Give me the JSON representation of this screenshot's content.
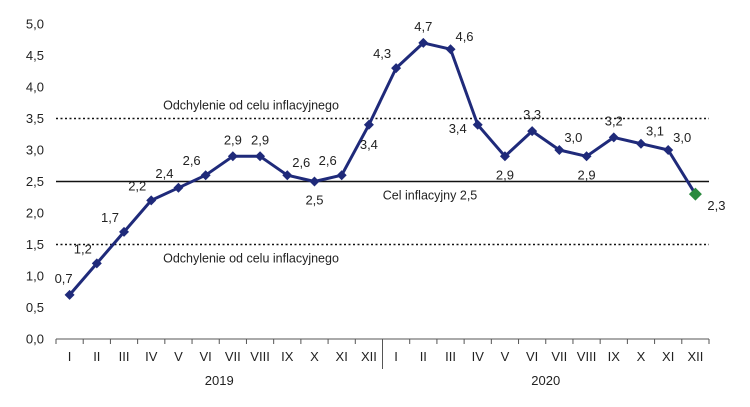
{
  "chart_data": {
    "type": "line",
    "categories": [
      "I",
      "II",
      "III",
      "IV",
      "V",
      "VI",
      "VII",
      "VIII",
      "IX",
      "X",
      "XI",
      "XII",
      "I",
      "II",
      "III",
      "IV",
      "V",
      "VI",
      "VII",
      "VIII",
      "IX",
      "X",
      "XI",
      "XII"
    ],
    "year_labels": [
      "2019",
      "2020"
    ],
    "values": [
      0.7,
      1.2,
      1.7,
      2.2,
      2.4,
      2.6,
      2.9,
      2.9,
      2.6,
      2.5,
      2.6,
      3.4,
      4.3,
      4.7,
      4.6,
      3.4,
      2.9,
      3.3,
      3.0,
      2.9,
      3.2,
      3.1,
      3.0,
      2.3
    ],
    "value_labels": [
      "0,7",
      "1,2",
      "1,7",
      "2,2",
      "2,4",
      "2,6",
      "2,9",
      "2,9",
      "2,6",
      "2,5",
      "2,6",
      "3,4",
      "4,3",
      "4,7",
      "4,6",
      "3,4",
      "2,9",
      "3,3",
      "3,0",
      "2,9",
      "3,2",
      "3,1",
      "3,0",
      "2,3"
    ],
    "y_ticks": [
      "0,0",
      "0,5",
      "1,0",
      "1,5",
      "2,0",
      "2,5",
      "3,0",
      "3,5",
      "4,0",
      "4,5",
      "5,0"
    ],
    "ylim": [
      0,
      5
    ],
    "reference_lines": [
      {
        "value": 3.5,
        "style": "dotted",
        "label": "Odchylenie od celu inflacyjnego"
      },
      {
        "value": 2.5,
        "style": "solid",
        "label": "Cel inflacyjny 2,5"
      },
      {
        "value": 1.5,
        "style": "dotted",
        "label": "Odchylenie od celu inflacyjnego"
      }
    ],
    "colors": {
      "line": "#1f2a7a",
      "marker": "#1f2a7a",
      "highlight_marker": "#2a8a3e",
      "reference": "#111111"
    },
    "highlight_last_point": true
  }
}
